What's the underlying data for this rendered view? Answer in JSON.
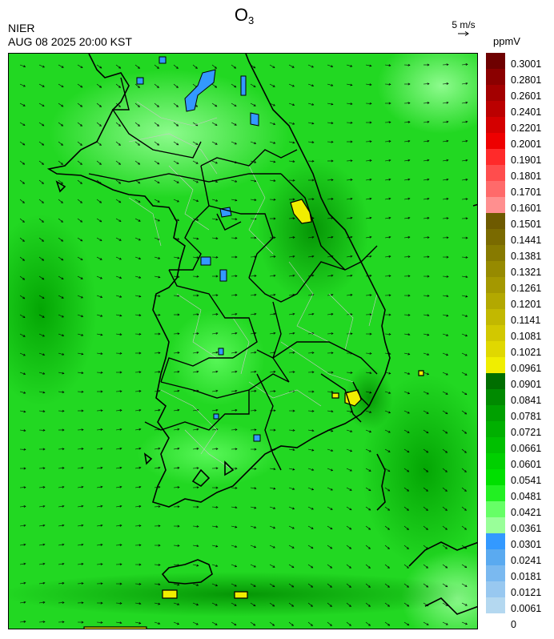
{
  "header": {
    "title_main": "O",
    "title_sub": "3",
    "agency": "NIER",
    "datetime": "AUG 08 2025 20:00 KST",
    "wind_reference": "5 m/s",
    "unit": "ppmV"
  },
  "legend": {
    "labels": [
      "0.3001",
      "0.2801",
      "0.2601",
      "0.2401",
      "0.2201",
      "0.2001",
      "0.1901",
      "0.1801",
      "0.1701",
      "0.1601",
      "0.1501",
      "0.1441",
      "0.1381",
      "0.1321",
      "0.1261",
      "0.1201",
      "0.1141",
      "0.1081",
      "0.1021",
      "0.0961",
      "0.0901",
      "0.0841",
      "0.0781",
      "0.0721",
      "0.0661",
      "0.0601",
      "0.0541",
      "0.0481",
      "0.0421",
      "0.0361",
      "0.0301",
      "0.0241",
      "0.0181",
      "0.0121",
      "0.0061",
      "0"
    ],
    "colors": [
      "#6e0000",
      "#8b0000",
      "#a30000",
      "#bb0000",
      "#d40000",
      "#ee0000",
      "#ff2a2a",
      "#ff4d4d",
      "#ff6a6a",
      "#ff8f8f",
      "#6e5a00",
      "#7a6a00",
      "#877a00",
      "#968a00",
      "#a49800",
      "#b3a800",
      "#c2b800",
      "#d2c800",
      "#e0d800",
      "#f0ee00",
      "#006e00",
      "#008a00",
      "#00a000",
      "#00b000",
      "#00c000",
      "#00d000",
      "#00e000",
      "#22f022",
      "#66ff66",
      "#99ff99",
      "#3399ff",
      "#5aaaf0",
      "#7ab9f0",
      "#98c8f0",
      "#b4d8f0"
    ]
  },
  "map": {
    "background_color": "#22cc22",
    "coast_color": "#000000",
    "province_color": "#000000",
    "district_color": "#c8c8c8"
  }
}
